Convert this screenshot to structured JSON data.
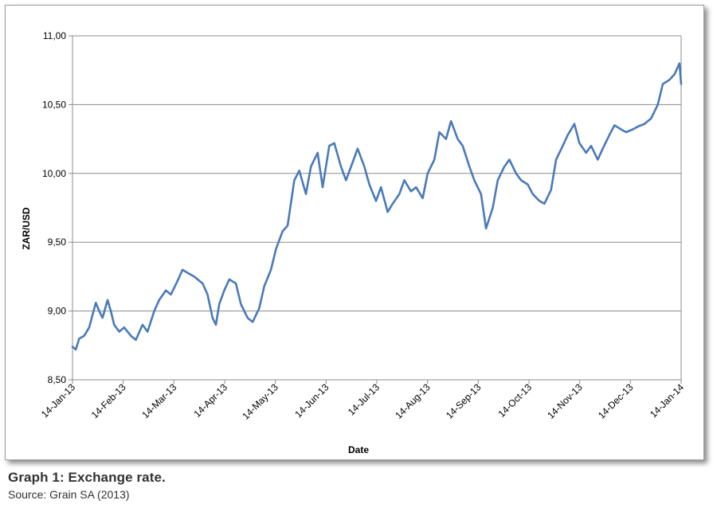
{
  "chart_data": {
    "type": "line",
    "title": "",
    "xlabel": "Date",
    "ylabel": "ZAR/USD",
    "ylim": [
      8.5,
      11.0
    ],
    "y_ticks": [
      "8,50",
      "9,00",
      "9,50",
      "10,00",
      "10,50",
      "11,00"
    ],
    "x_ticks": [
      "14-Jan-13",
      "14-Feb-13",
      "14-Mar-13",
      "14-Apr-13",
      "14-May-13",
      "14-Jun-13",
      "14-Jul-13",
      "14-Aug-13",
      "14-Sep-13",
      "14-Oct-13",
      "14-Nov-13",
      "14-Dec-13",
      "14-Jan-14"
    ],
    "grid": true,
    "legend": "none",
    "line_color": "#4a7ab8",
    "series": [
      {
        "x": [
          "2013-01-14",
          "2013-01-16",
          "2013-01-18",
          "2013-01-21",
          "2013-01-24",
          "2013-01-28",
          "2013-01-30",
          "2013-02-01",
          "2013-02-04",
          "2013-02-06",
          "2013-02-08",
          "2013-02-11",
          "2013-02-14",
          "2013-02-18",
          "2013-02-21",
          "2013-02-25",
          "2013-02-28",
          "2013-03-04",
          "2013-03-07",
          "2013-03-11",
          "2013-03-14",
          "2013-03-18",
          "2013-03-21",
          "2013-03-25",
          "2013-03-28",
          "2013-04-02",
          "2013-04-05",
          "2013-04-08",
          "2013-04-10",
          "2013-04-12",
          "2013-04-15",
          "2013-04-18",
          "2013-04-22",
          "2013-04-25",
          "2013-04-29",
          "2013-05-02",
          "2013-05-06",
          "2013-05-09",
          "2013-05-13",
          "2013-05-16",
          "2013-05-20",
          "2013-05-23",
          "2013-05-27",
          "2013-05-30",
          "2013-06-03",
          "2013-06-06",
          "2013-06-10",
          "2013-06-13",
          "2013-06-17",
          "2013-06-20",
          "2013-06-24",
          "2013-06-27",
          "2013-07-01",
          "2013-07-04",
          "2013-07-08",
          "2013-07-11",
          "2013-07-15",
          "2013-07-18",
          "2013-07-22",
          "2013-07-25",
          "2013-07-29",
          "2013-08-01",
          "2013-08-05",
          "2013-08-08",
          "2013-08-12",
          "2013-08-15",
          "2013-08-19",
          "2013-08-22",
          "2013-08-26",
          "2013-08-29",
          "2013-09-02",
          "2013-09-05",
          "2013-09-09",
          "2013-09-12",
          "2013-09-16",
          "2013-09-19",
          "2013-09-23",
          "2013-09-26",
          "2013-09-30",
          "2013-10-03",
          "2013-10-07",
          "2013-10-10",
          "2013-10-14",
          "2013-10-17",
          "2013-10-21",
          "2013-10-24",
          "2013-10-28",
          "2013-10-31",
          "2013-11-04",
          "2013-11-07",
          "2013-11-11",
          "2013-11-14",
          "2013-11-18",
          "2013-11-21",
          "2013-11-25",
          "2013-11-28",
          "2013-12-02",
          "2013-12-05",
          "2013-12-09",
          "2013-12-12",
          "2013-12-16",
          "2013-12-19",
          "2013-12-23",
          "2013-12-27",
          "2013-12-31",
          "2014-01-03",
          "2014-01-07",
          "2014-01-10",
          "2014-01-13",
          "2014-01-14"
        ],
        "values": [
          8.74,
          8.72,
          8.8,
          8.82,
          8.88,
          9.06,
          9.0,
          8.95,
          9.08,
          9.0,
          8.9,
          8.85,
          8.88,
          8.82,
          8.79,
          8.9,
          8.85,
          9.0,
          9.08,
          9.15,
          9.12,
          9.22,
          9.3,
          9.27,
          9.25,
          9.2,
          9.12,
          8.95,
          8.9,
          9.05,
          9.15,
          9.23,
          9.2,
          9.05,
          8.95,
          8.92,
          9.02,
          9.18,
          9.3,
          9.45,
          9.58,
          9.62,
          9.95,
          10.02,
          9.85,
          10.05,
          10.15,
          9.9,
          10.2,
          10.22,
          10.05,
          9.95,
          10.08,
          10.18,
          10.05,
          9.92,
          9.8,
          9.9,
          9.72,
          9.78,
          9.85,
          9.95,
          9.87,
          9.9,
          9.82,
          10.0,
          10.1,
          10.3,
          10.25,
          10.38,
          10.25,
          10.2,
          10.05,
          9.95,
          9.85,
          9.6,
          9.75,
          9.95,
          10.05,
          10.1,
          10.0,
          9.95,
          9.92,
          9.85,
          9.8,
          9.78,
          9.88,
          10.1,
          10.2,
          10.28,
          10.36,
          10.22,
          10.15,
          10.2,
          10.1,
          10.18,
          10.28,
          10.35,
          10.32,
          10.3,
          10.32,
          10.34,
          10.36,
          10.4,
          10.5,
          10.65,
          10.68,
          10.72,
          10.8,
          10.65
        ]
      }
    ]
  },
  "caption": {
    "title": "Graph 1: Exchange rate.",
    "source": "Source: Grain SA (2013)"
  }
}
